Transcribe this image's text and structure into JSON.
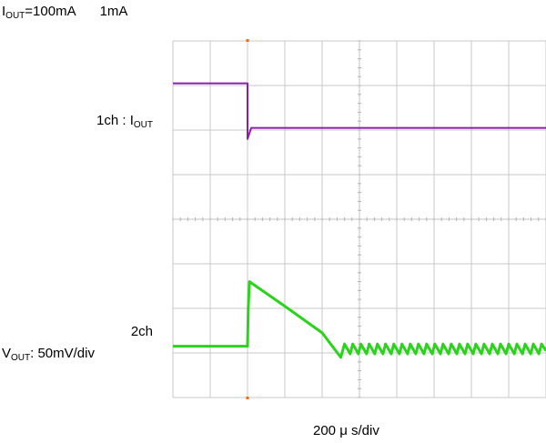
{
  "labels": {
    "iout_before_prefix": "I",
    "iout_before_sub": "OUT",
    "iout_before_value": "=100mA",
    "iout_after": "1mA",
    "ch1_prefix": "1ch : I",
    "ch1_sub": "OUT",
    "ch2_name": "2ch",
    "ch2_scale_prefix": "V",
    "ch2_scale_sub": "OUT",
    "ch2_scale_value": ": 50mV/div",
    "time_scale": "200 μ s/div"
  },
  "colors": {
    "ch1": "#8b20a8",
    "ch2": "#2ad41a",
    "grid": "#c8c8c8",
    "trigger_marker": "#ff6a00"
  },
  "chart_data": {
    "type": "line",
    "title": "",
    "xlabel": "200 μ s/div",
    "grid": true,
    "x_divisions": 10,
    "y_divisions": 8,
    "xlim": [
      0,
      10
    ],
    "ylim": [
      0,
      8
    ],
    "series": [
      {
        "name": "1ch : IOUT",
        "unit": "div",
        "x": [
          0,
          2.0,
          2.0,
          2.1,
          10
        ],
        "y": [
          7.05,
          7.05,
          5.8,
          6.05,
          6.05
        ]
      },
      {
        "name": "2ch VOUT",
        "unit": "div",
        "x": [
          0,
          2.0,
          2.02,
          2.05,
          3.0,
          4.0,
          4.5,
          4.6,
          4.75,
          4.82,
          4.97,
          5.04,
          5.19,
          5.26,
          5.41,
          5.48,
          5.63,
          5.7,
          5.85,
          5.92,
          6.07,
          6.14,
          6.29,
          6.36,
          6.51,
          6.58,
          6.73,
          6.8,
          6.95,
          7.02,
          7.17,
          7.24,
          7.39,
          7.46,
          7.61,
          7.68,
          7.83,
          7.9,
          8.05,
          8.12,
          8.27,
          8.34,
          8.49,
          8.56,
          8.71,
          8.78,
          8.93,
          9.0,
          9.15,
          9.22,
          9.37,
          9.44,
          9.59,
          9.66,
          9.81,
          9.88,
          10
        ],
        "y": [
          1.15,
          1.15,
          2.0,
          2.6,
          2.05,
          1.45,
          0.9,
          1.2,
          0.98,
          1.2,
          0.98,
          1.2,
          0.98,
          1.2,
          0.98,
          1.2,
          0.98,
          1.2,
          0.98,
          1.2,
          0.98,
          1.2,
          0.98,
          1.2,
          0.98,
          1.2,
          0.98,
          1.2,
          0.98,
          1.2,
          0.98,
          1.2,
          0.98,
          1.2,
          0.98,
          1.2,
          0.98,
          1.2,
          0.98,
          1.2,
          0.98,
          1.2,
          0.98,
          1.2,
          0.98,
          1.2,
          0.98,
          1.2,
          0.98,
          1.2,
          0.98,
          1.2,
          0.98,
          1.2,
          0.98,
          1.2,
          1.05
        ]
      }
    ]
  }
}
